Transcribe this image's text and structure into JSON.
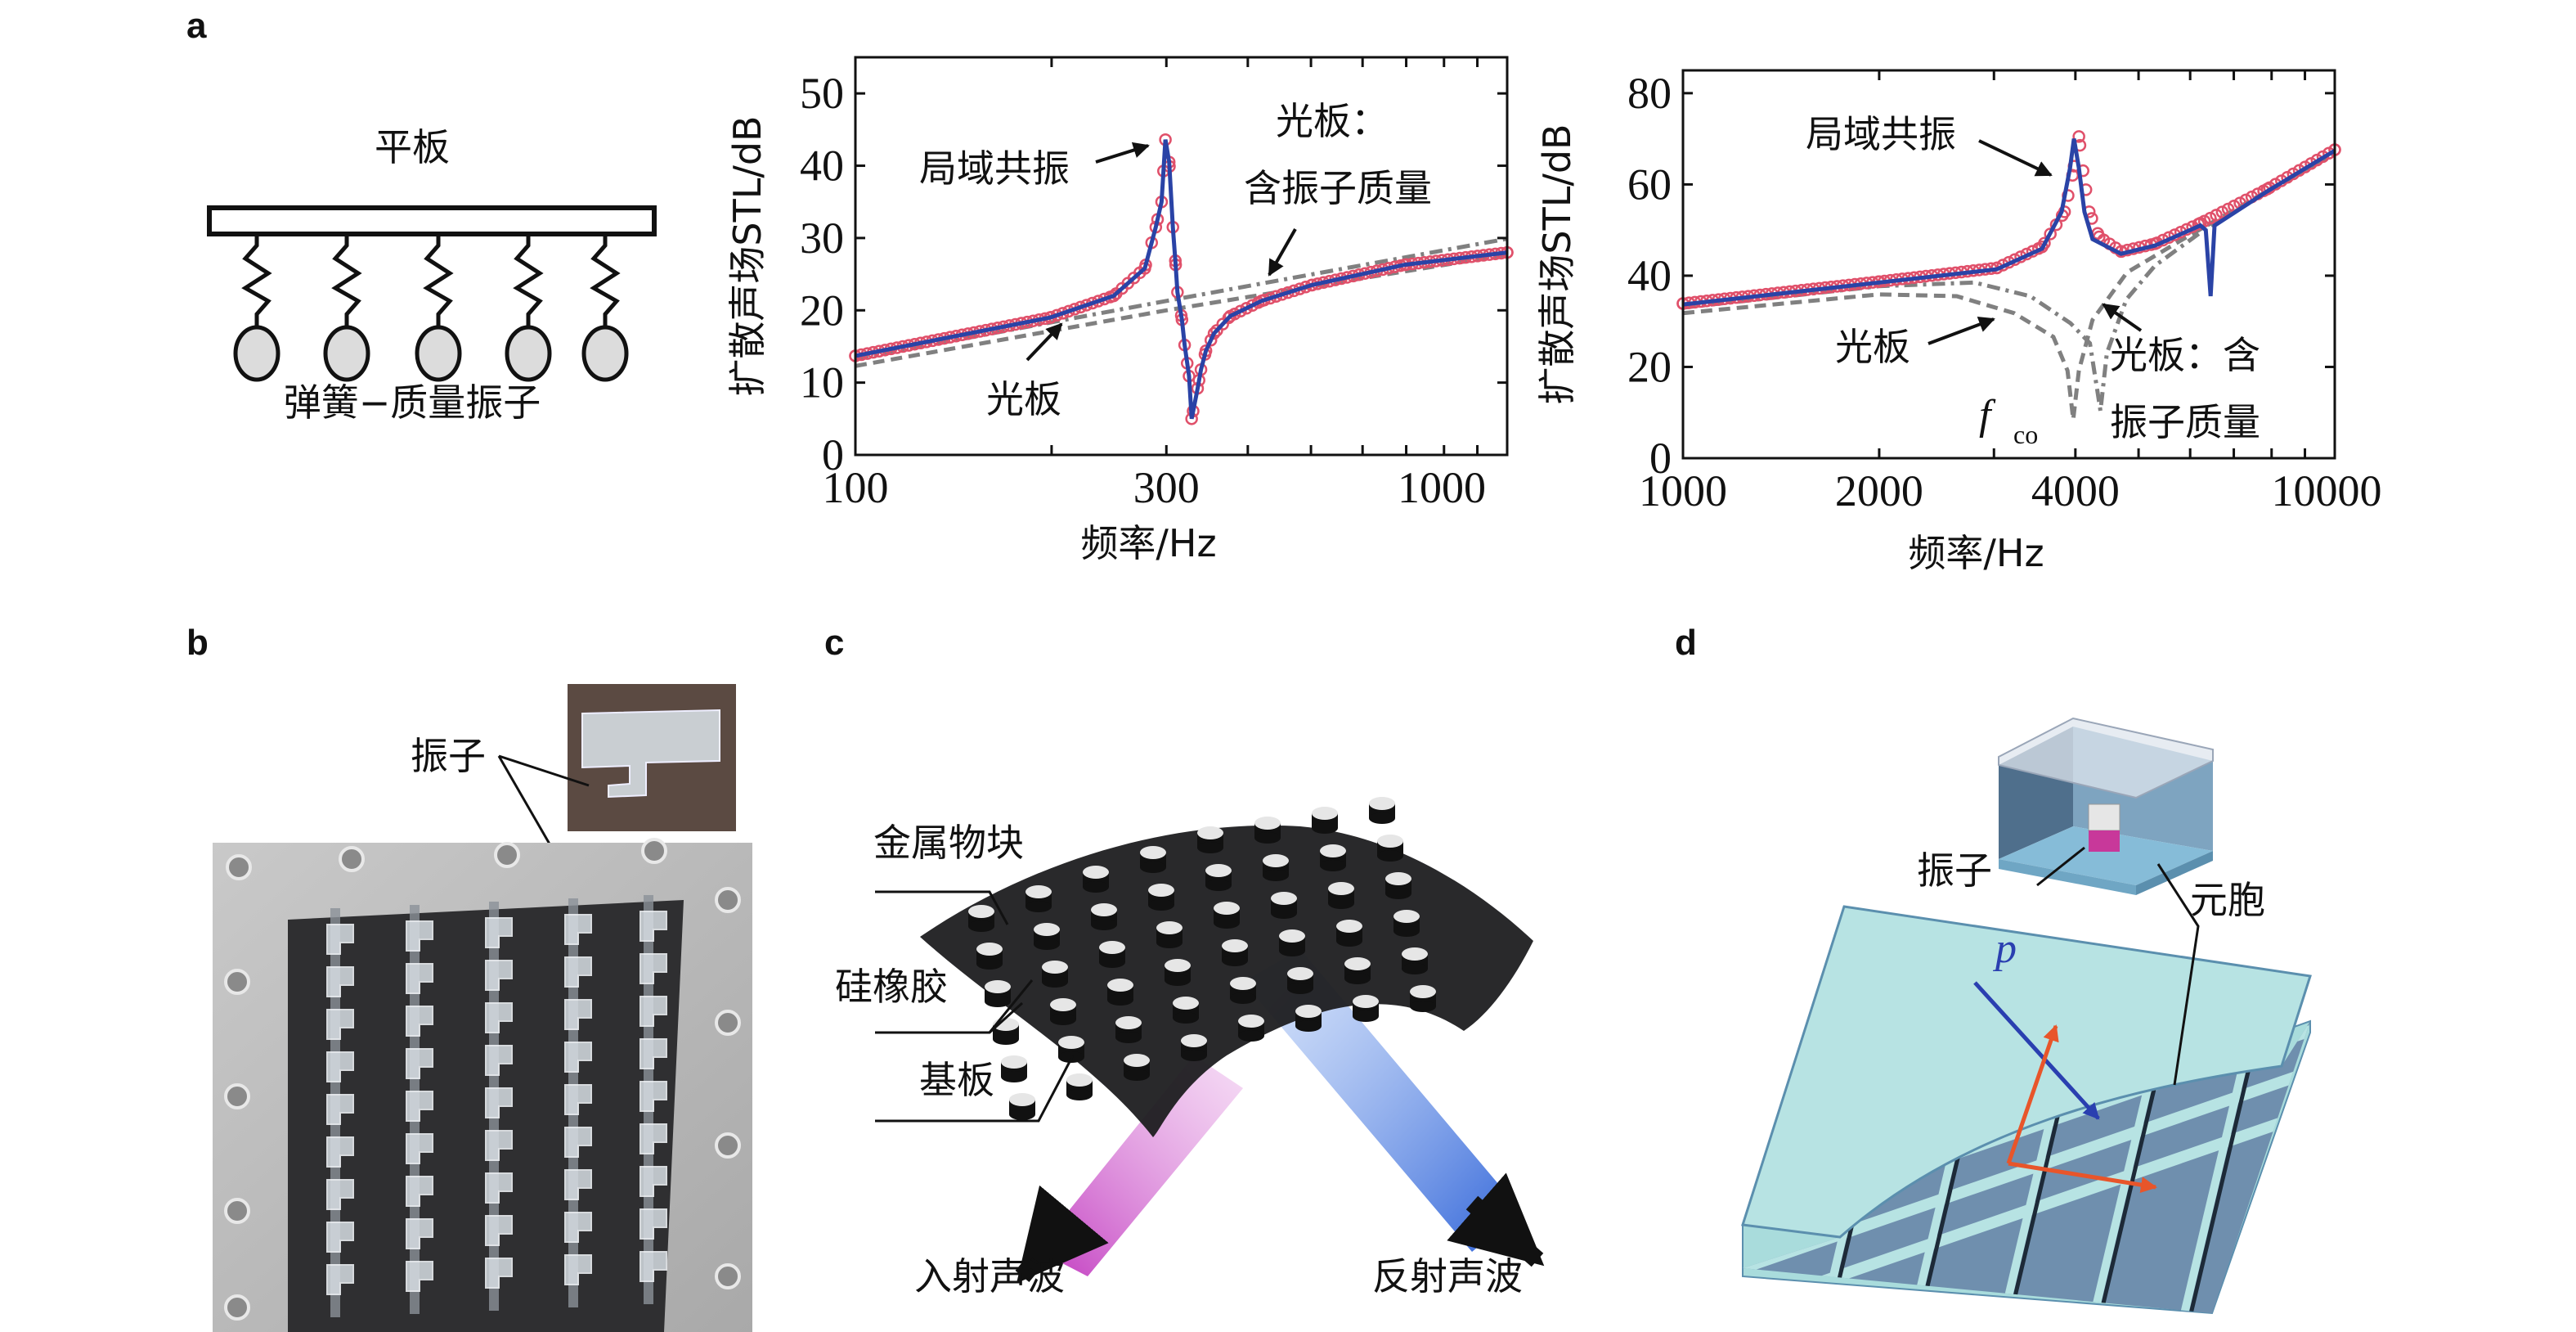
{
  "panels": {
    "a": {
      "label": "a",
      "plate_label": "平板",
      "oscillator_label": "弹簧−质量振子"
    },
    "b": {
      "label": "b",
      "oscillator_label": "振子"
    },
    "c": {
      "label": "c",
      "metal_block": "金属物块",
      "silicone_rubber": "硅橡胶",
      "substrate": "基板",
      "incident_wave": "入射声波",
      "reflected_wave": "反射声波"
    },
    "d": {
      "label": "d",
      "oscillator_label": "振子",
      "unit_cell_label": "元胞",
      "vector_label": "p"
    }
  },
  "colors": {
    "model_line": "#2a43a6",
    "measured_circles": "#e0506a",
    "bare_plate": "#808080",
    "accent_orange": "#e8552a",
    "vector_blue": "#2a3fb0",
    "cell_blue": "#b7e3e3",
    "oscillator_magenta": "#c8389a"
  },
  "chart_data": [
    {
      "type": "line",
      "xlabel": "频率/Hz",
      "ylabel": "扩散声场STL/dB",
      "xscale": "log",
      "xlim": [
        100,
        1000
      ],
      "ylim": [
        0,
        55
      ],
      "xticks": [
        100,
        300,
        1000
      ],
      "xtick_labels": [
        "100",
        "300",
        "1000"
      ],
      "xminor": [
        200,
        400,
        500,
        600,
        700,
        800,
        900
      ],
      "yticks": [
        0,
        10,
        20,
        30,
        40,
        50
      ],
      "ytick_labels": [
        "0",
        "10",
        "20",
        "30",
        "40",
        "50"
      ],
      "grid": false,
      "annotations": {
        "resonance": "局域共振",
        "plate_mass_1": "光板：",
        "plate_mass_2": "含振子质量",
        "plate": "光板"
      },
      "series": [
        {
          "style": "dashed-gray",
          "x": [
            100,
            300,
            1000
          ],
          "y": [
            12.3,
            20,
            27.7
          ]
        },
        {
          "style": "dashdot-gray",
          "x": [
            100,
            300,
            1000
          ],
          "y": [
            13.3,
            21.3,
            29.9
          ]
        },
        {
          "style": "circles-red",
          "x": [
            100,
            199,
            249,
            278,
            289,
            295,
            299,
            303,
            307,
            310,
            312,
            317,
            320,
            325,
            328,
            335,
            339,
            345,
            355,
            376,
            420,
            502,
            696,
            1000
          ],
          "y": [
            13.7,
            19,
            22,
            25.8,
            31.5,
            35,
            43.6,
            40.5,
            31.5,
            26.3,
            22.5,
            18.7,
            15.2,
            10.9,
            5,
            9.2,
            11.8,
            14.4,
            16.8,
            19.2,
            21.3,
            23.5,
            26.3,
            28
          ]
        },
        {
          "style": "solid-blue",
          "x": [
            100,
            199,
            249,
            278,
            289,
            295,
            299,
            303,
            307,
            310,
            312,
            317,
            320,
            325,
            328,
            335,
            339,
            345,
            355,
            376,
            420,
            502,
            696,
            1000
          ],
          "y": [
            13.7,
            19,
            22,
            25.8,
            31.5,
            35,
            43.6,
            40.5,
            31.5,
            26.3,
            22.5,
            18.7,
            15.2,
            10.9,
            5,
            9.2,
            11.8,
            14.4,
            16.8,
            19.2,
            21.3,
            23.5,
            26.3,
            28
          ]
        }
      ]
    },
    {
      "type": "line",
      "xlabel": "频率/Hz",
      "ylabel": "扩散声场STL/dB",
      "xscale": "log",
      "xlim": [
        1000,
        10000
      ],
      "ylim": [
        0,
        85
      ],
      "xticks": [
        1000,
        2000,
        4000,
        10000
      ],
      "xtick_labels": [
        "1000",
        "2000",
        "4000",
        "10000"
      ],
      "xminor": [
        3000,
        5000,
        6000,
        7000,
        8000,
        9000
      ],
      "yticks": [
        0,
        20,
        40,
        60,
        80
      ],
      "ytick_labels": [
        "0",
        "20",
        "40",
        "60",
        "80"
      ],
      "grid": false,
      "annotations": {
        "resonance": "局域共振",
        "plate": "光板",
        "plate_mass_1": "光板：含",
        "plate_mass_2": "振子质量",
        "fco_f": "f",
        "fco_sub": "co"
      },
      "series": [
        {
          "style": "dashed-gray",
          "x": [
            1000,
            2000,
            2630,
            3220,
            3700,
            3890,
            3970,
            4050,
            4250,
            4800,
            5850,
            10000
          ],
          "y": [
            31.8,
            35.9,
            35.5,
            31.8,
            26.6,
            19.2,
            8.5,
            19.2,
            30.3,
            40.7,
            48,
            67
          ]
        },
        {
          "style": "dashdot-gray",
          "x": [
            1000,
            2000,
            2800,
            3410,
            3930,
            4210,
            4370,
            4470,
            4790,
            5300,
            6340,
            10000
          ],
          "y": [
            33,
            37.7,
            38.5,
            35.5,
            29.6,
            25.2,
            10.4,
            23,
            34.8,
            42.2,
            50.3,
            67
          ]
        },
        {
          "style": "circles-red",
          "x": [
            1000,
            2000,
            3030,
            3555,
            3850,
            3960,
            4050,
            4110,
            4200,
            4350,
            4700,
            5300,
            6220,
            7880,
            10000
          ],
          "y": [
            33.9,
            38.7,
            41.7,
            46.3,
            54,
            62,
            70.5,
            63,
            54,
            48.5,
            45.3,
            47,
            51.5,
            59,
            67.6
          ]
        },
        {
          "style": "solid-blue",
          "x": [
            1000,
            2000,
            3030,
            3555,
            3810,
            3925,
            3980,
            4050,
            4130,
            4250,
            4700,
            5300,
            6220,
            6340,
            6450,
            6540,
            7880,
            10000
          ],
          "y": [
            33.7,
            38.5,
            41.4,
            45.9,
            54,
            63.6,
            70,
            63.6,
            54,
            48,
            44.8,
            46.6,
            51,
            50,
            35.5,
            51,
            58.5,
            67.4
          ]
        }
      ]
    }
  ]
}
